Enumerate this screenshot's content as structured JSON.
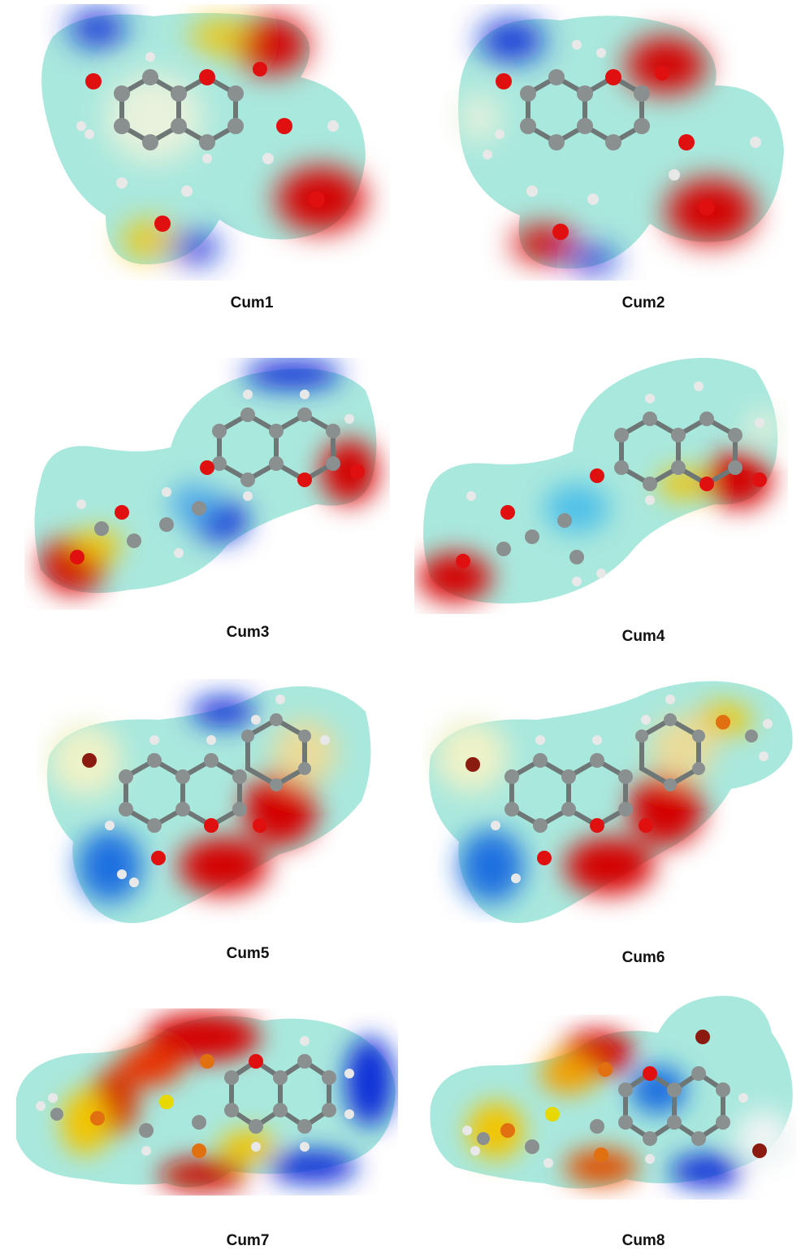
{
  "figure": {
    "molecules": [
      {
        "id": "cum1",
        "label": "Cum1"
      },
      {
        "id": "cum2",
        "label": "Cum2"
      },
      {
        "id": "cum3",
        "label": "Cum3"
      },
      {
        "id": "cum4",
        "label": "Cum4"
      },
      {
        "id": "cum5",
        "label": "Cum5"
      },
      {
        "id": "cum6",
        "label": "Cum6"
      },
      {
        "id": "cum7",
        "label": "Cum7"
      },
      {
        "id": "cum8",
        "label": "Cum8"
      }
    ]
  },
  "colors": {
    "negative": "#d40000",
    "mid_negative": "#f2c400",
    "neutral": "#7fe0d2",
    "positive": "#0a2fd8",
    "carbon": "#8a9090",
    "hydrogen": "#e8e8e8",
    "oxygen": "#e01010",
    "bromine": "#8b1a10",
    "sulfur": "#e6d800"
  }
}
